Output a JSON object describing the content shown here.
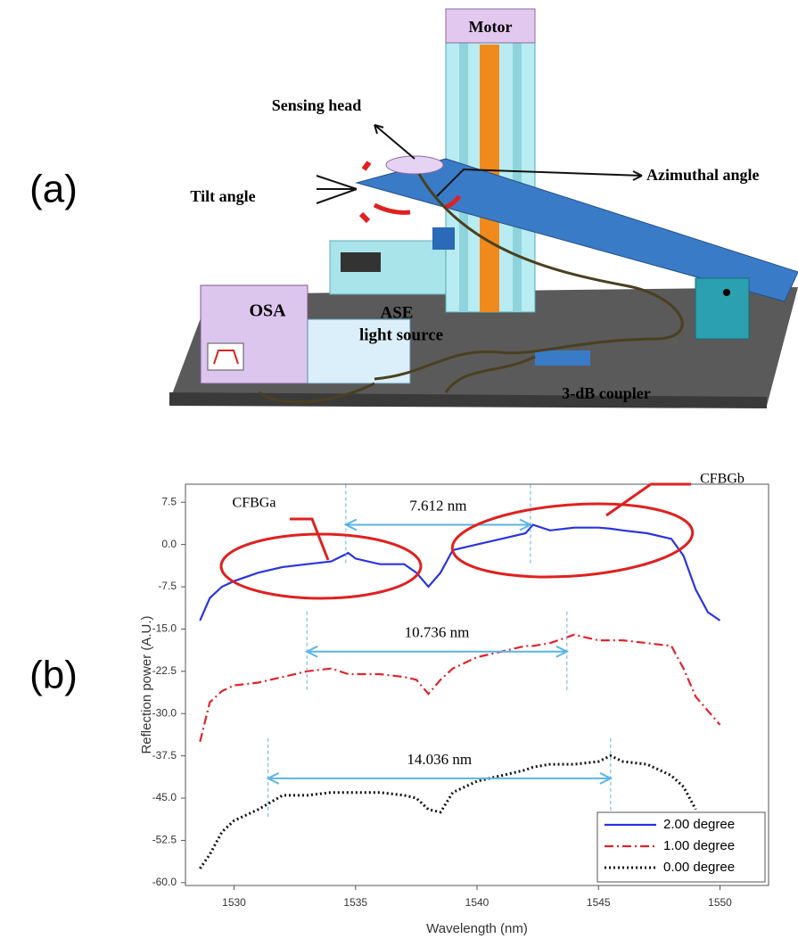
{
  "panel_a": {
    "label": "(a)",
    "motor": "Motor",
    "sensing_head": "Sensing head",
    "azimuthal_angle": "Azimuthal angle",
    "tilt_angle": "Tilt angle",
    "osa": "OSA",
    "ase": "ASE",
    "light_source": "light source",
    "coupler": "3-dB coupler"
  },
  "panel_b": {
    "label": "(b)",
    "cfbga": "CFBGa",
    "cfbgb": "CFBGb"
  },
  "chart_data": {
    "type": "line",
    "x_label": "Wavelength (nm)",
    "y_label": "Reflection power (A.U.)",
    "x": [
      1528.6,
      1529,
      1529.5,
      1530,
      1531,
      1532,
      1533,
      1534,
      1534.7,
      1535,
      1536,
      1537,
      1537.5,
      1538,
      1538.5,
      1539,
      1540,
      1541,
      1542,
      1542.3,
      1543,
      1544,
      1545,
      1545.5,
      1546,
      1547,
      1548,
      1548.5,
      1549,
      1549.5,
      1550
    ],
    "series": [
      {
        "name": "2.00 degree",
        "color": "#2a34e0",
        "style": "solid",
        "values": [
          -13.5,
          -9.5,
          -7.5,
          -6.5,
          -5,
          -4,
          -3.5,
          -3,
          -1.5,
          -2.5,
          -3.5,
          -3.5,
          -5,
          -7.5,
          -5,
          -1,
          0,
          1,
          2,
          3.5,
          2.5,
          3,
          3,
          2.8,
          2.5,
          2,
          1,
          -2,
          -8,
          -12,
          -13.5
        ]
      },
      {
        "name": "1.00 degree",
        "color": "#e0242a",
        "style": "dashdot",
        "values": [
          -35,
          -28,
          -26,
          -25,
          -24.5,
          -23.5,
          -22.5,
          -22,
          -23,
          -23,
          -23,
          -23.5,
          -24,
          -26.5,
          -24,
          -22,
          -20,
          -19,
          -18,
          -18,
          -17.5,
          -16,
          -17,
          -17,
          -17,
          -17.5,
          -18,
          -22,
          -27,
          -29.5,
          -32
        ]
      },
      {
        "name": "0.00 degree",
        "color": "#111111",
        "style": "dotted",
        "values": [
          -57.5,
          -55,
          -51,
          -49,
          -47,
          -44.5,
          -44.5,
          -44,
          -44,
          -44,
          -44,
          -44.5,
          -45,
          -47,
          -47.5,
          -44,
          -42,
          -41,
          -40,
          -39.5,
          -39,
          -39,
          -38.5,
          -37.5,
          -38.5,
          -39,
          -41,
          -43,
          -47,
          null,
          null
        ]
      }
    ],
    "annotations": [
      {
        "text": "7.612 nm",
        "x": [
          1534.6,
          1542.2
        ],
        "y": 3.5
      },
      {
        "text": "10.736 nm",
        "x": [
          1533,
          1543.7
        ],
        "y": -19
      },
      {
        "text": "14.036 nm",
        "x": [
          1531.4,
          1545.5
        ],
        "y": -41.5
      }
    ],
    "xlim": [
      1528,
      1552
    ],
    "xticks": [
      1530,
      1535,
      1540,
      1545,
      1550
    ],
    "ylim": [
      -60.5,
      10.7
    ],
    "yticks": [
      7.5,
      {
        "value": 0,
        "label": "0.0"
      },
      -7.5,
      {
        "value": -15,
        "label": "-15.0"
      },
      -22.5,
      {
        "value": -30,
        "label": "-30.0"
      },
      -37.5,
      {
        "value": -45,
        "label": "-45.0"
      },
      -52.5,
      {
        "value": -60,
        "label": "-60.0"
      }
    ],
    "legend": "lower right",
    "grid": false
  }
}
